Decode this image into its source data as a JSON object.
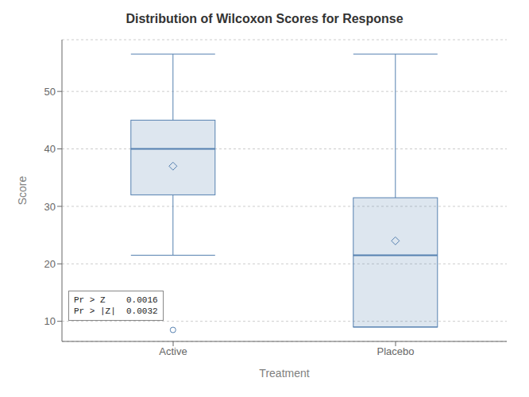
{
  "chart_data": {
    "type": "box",
    "title": "Distribution of Wilcoxon Scores for Response",
    "xlabel": "Treatment",
    "ylabel": "Score",
    "categories": [
      "Active",
      "Placebo"
    ],
    "q1": [
      32.0,
      9.0
    ],
    "median": [
      40.0,
      21.5
    ],
    "q3": [
      45.0,
      31.5
    ],
    "whisker_low": [
      21.5,
      9.0
    ],
    "whisker_high": [
      56.5,
      56.5
    ],
    "mean": [
      37.0,
      24.0
    ],
    "outliers": [
      [
        8.5
      ],
      []
    ],
    "ylim": [
      6.5,
      59
    ],
    "yticks": [
      10,
      20,
      30,
      40,
      50
    ],
    "grid": true,
    "color": "#5580b0",
    "annotations": [
      "Pr > Z    0.0016",
      "Pr > |Z|  0.0032"
    ]
  }
}
